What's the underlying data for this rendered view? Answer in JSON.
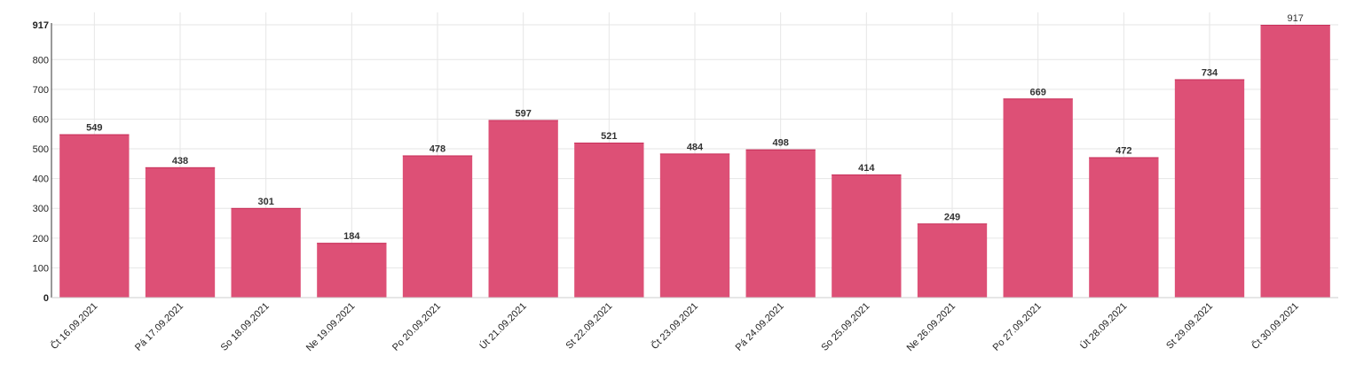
{
  "chart_data": {
    "type": "bar",
    "title": "",
    "xlabel": "",
    "ylabel": "",
    "ylim": [
      0,
      917
    ],
    "y_ticks": [
      0,
      100,
      200,
      300,
      400,
      500,
      600,
      700,
      800,
      917
    ],
    "grid": true,
    "bar_color": "#dc4a72",
    "categories": [
      "Čt 16.09.2021",
      "Pá 17.09.2021",
      "So 18.09.2021",
      "Ne 19.09.2021",
      "Po 20.09.2021",
      "Út 21.09.2021",
      "St 22.09.2021",
      "Čt 23.09.2021",
      "Pá 24.09.2021",
      "So 25.09.2021",
      "Ne 26.09.2021",
      "Po 27.09.2021",
      "Út 28.09.2021",
      "St 29.09.2021",
      "Čt 30.09.2021"
    ],
    "values": [
      549,
      438,
      301,
      184,
      478,
      597,
      521,
      484,
      498,
      414,
      249,
      669,
      472,
      734,
      917
    ]
  }
}
